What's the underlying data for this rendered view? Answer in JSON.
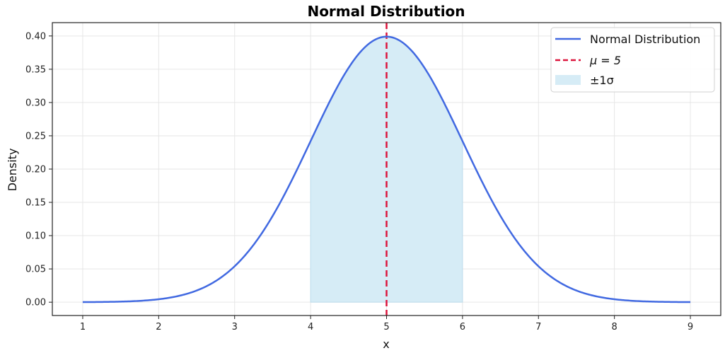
{
  "chart_data": {
    "type": "line",
    "title": "Normal Distribution",
    "xlabel": "x",
    "ylabel": "Density",
    "xlim": [
      0.6,
      9.4
    ],
    "ylim": [
      -0.02,
      0.42
    ],
    "grid": true,
    "legend_position": "upper right",
    "x_ticks": [
      1,
      2,
      3,
      4,
      5,
      6,
      7,
      8,
      9
    ],
    "x_tick_labels": [
      "1",
      "2",
      "3",
      "4",
      "5",
      "6",
      "7",
      "8",
      "9"
    ],
    "y_ticks": [
      0.0,
      0.05,
      0.1,
      0.15,
      0.2,
      0.25,
      0.3,
      0.35,
      0.4
    ],
    "y_tick_labels": [
      "0.00",
      "0.05",
      "0.10",
      "0.15",
      "0.20",
      "0.25",
      "0.30",
      "0.35",
      "0.40"
    ],
    "distribution": {
      "mu": 5,
      "sigma": 1,
      "x_range": [
        1,
        9
      ]
    },
    "series": [
      {
        "name": "Normal Distribution",
        "kind": "line",
        "color": "#4169e1",
        "x": [
          1,
          1.5,
          2,
          2.5,
          3,
          3.5,
          4,
          4.5,
          5,
          5.5,
          6,
          6.5,
          7,
          7.5,
          8,
          8.5,
          9
        ],
        "values": [
          0.0001,
          0.0009,
          0.0044,
          0.0175,
          0.054,
          0.1295,
          0.242,
          0.3521,
          0.3989,
          0.3521,
          0.242,
          0.1295,
          0.054,
          0.0175,
          0.0044,
          0.0009,
          0.0001
        ]
      },
      {
        "name": "μ = 5",
        "kind": "vline",
        "x": 5,
        "color": "#dc143c",
        "linestyle": "dashed"
      },
      {
        "name": "±1σ",
        "kind": "fill_between",
        "x_range": [
          4,
          6
        ],
        "color": "#87ceeb",
        "alpha": 0.3
      }
    ],
    "legend": [
      {
        "label": "Normal Distribution",
        "type": "line",
        "color": "#4169e1"
      },
      {
        "label": "μ = 5",
        "type": "dashed",
        "color": "#dc143c"
      },
      {
        "label": "±1σ",
        "type": "patch",
        "color": "#d6ecf6"
      }
    ]
  }
}
